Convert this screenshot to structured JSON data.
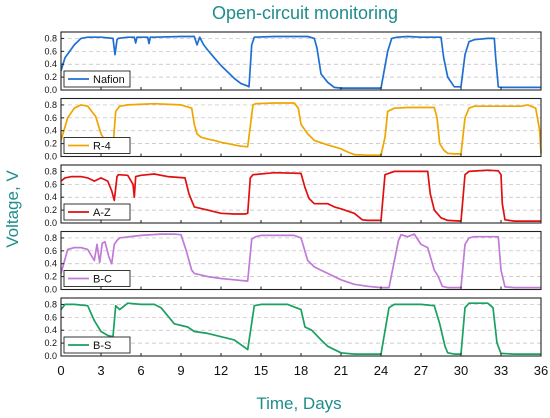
{
  "chart_data": {
    "type": "line",
    "title": "Open-circuit monitoring",
    "xlabel": "Time, Days",
    "ylabel": "Voltage, V",
    "xlim": [
      0,
      36
    ],
    "ylim": [
      0,
      0.9
    ],
    "x_ticks": [
      "0",
      "3",
      "6",
      "9",
      "12",
      "15",
      "18",
      "21",
      "24",
      "27",
      "30",
      "33",
      "36"
    ],
    "y_ticks": [
      "0.0",
      "0.2",
      "0.4",
      "0.6",
      "0.8"
    ],
    "grid": "horizontal dashed",
    "legend_position": "bottom-left",
    "panels": [
      {
        "name": "Nafion",
        "color": "#1f6fd1",
        "x": [
          0,
          0.3,
          1,
          1.5,
          2,
          3,
          3.9,
          4.05,
          4.2,
          4.3,
          5,
          5.5,
          5.6,
          5.7,
          6,
          6.5,
          6.6,
          6.7,
          7,
          9,
          10,
          10.2,
          10.4,
          10.7,
          11,
          11.5,
          12,
          12.5,
          13,
          13.5,
          14,
          14.1,
          14.3,
          14.5,
          16,
          17,
          18.5,
          19,
          19.2,
          19.5,
          20,
          20.5,
          21,
          22,
          24,
          24.5,
          24.8,
          25.2,
          26,
          27,
          28.5,
          28.7,
          29,
          29.5,
          30,
          30.3,
          30.6,
          31,
          32,
          32.5,
          32.6,
          32.8,
          33,
          34,
          36
        ],
        "values": [
          0.3,
          0.5,
          0.7,
          0.8,
          0.82,
          0.82,
          0.8,
          0.55,
          0.78,
          0.8,
          0.82,
          0.82,
          0.73,
          0.82,
          0.82,
          0.82,
          0.72,
          0.82,
          0.82,
          0.83,
          0.83,
          0.7,
          0.82,
          0.7,
          0.62,
          0.5,
          0.38,
          0.28,
          0.18,
          0.1,
          0.06,
          0.05,
          0.7,
          0.82,
          0.83,
          0.83,
          0.83,
          0.8,
          0.65,
          0.25,
          0.12,
          0.04,
          0.03,
          0.03,
          0.03,
          0.6,
          0.8,
          0.82,
          0.83,
          0.82,
          0.82,
          0.5,
          0.2,
          0.05,
          0.05,
          0.55,
          0.75,
          0.78,
          0.8,
          0.8,
          0.5,
          0.05,
          0.04,
          0.04,
          0.04
        ]
      },
      {
        "name": "R-4",
        "color": "#f0a500",
        "x": [
          0,
          0.5,
          1,
          1.5,
          2,
          2.3,
          2.6,
          3,
          3.3,
          3.5,
          3.9,
          4.1,
          4.4,
          5,
          7,
          9,
          9.8,
          10,
          10.2,
          10.5,
          11,
          11.5,
          12,
          12.5,
          13,
          13.5,
          14,
          14.4,
          14.6,
          16,
          17.5,
          17.8,
          18,
          18.5,
          19,
          20,
          21,
          21.5,
          22,
          23,
          24,
          24.3,
          24.5,
          25,
          26,
          27,
          28,
          28.2,
          28.4,
          28.7,
          29,
          29.5,
          30,
          30.3,
          30.6,
          31,
          33,
          34.5,
          35,
          35.6,
          35.9,
          36
        ],
        "values": [
          0.25,
          0.6,
          0.75,
          0.8,
          0.78,
          0.7,
          0.62,
          0.35,
          0.25,
          0.18,
          0.15,
          0.7,
          0.78,
          0.8,
          0.82,
          0.8,
          0.75,
          0.5,
          0.35,
          0.3,
          0.27,
          0.25,
          0.22,
          0.2,
          0.18,
          0.16,
          0.15,
          0.8,
          0.82,
          0.83,
          0.83,
          0.75,
          0.5,
          0.35,
          0.25,
          0.18,
          0.12,
          0.07,
          0.03,
          0.02,
          0.02,
          0.3,
          0.7,
          0.75,
          0.76,
          0.76,
          0.76,
          0.6,
          0.2,
          0.1,
          0.05,
          0.04,
          0.04,
          0.6,
          0.75,
          0.78,
          0.78,
          0.78,
          0.8,
          0.75,
          0.4,
          0.05
        ]
      },
      {
        "name": "A-Z",
        "color": "#e01010",
        "x": [
          0,
          0.3,
          0.8,
          1.5,
          2,
          2.5,
          3,
          3.5,
          3.8,
          4,
          4.2,
          4.3,
          5,
          5.4,
          5.5,
          5.6,
          6,
          7,
          8,
          9.3,
          9.6,
          10,
          11,
          12,
          13,
          13.8,
          14,
          14.2,
          14.4,
          16,
          18,
          18.3,
          18.6,
          19,
          20,
          20.5,
          21,
          22,
          22.6,
          23,
          24,
          24.3,
          25,
          27.5,
          27.7,
          28,
          28.5,
          29,
          30,
          30.3,
          30.6,
          32,
          32.8,
          33,
          33.1,
          33.3,
          34,
          36
        ],
        "values": [
          0.65,
          0.7,
          0.72,
          0.72,
          0.7,
          0.65,
          0.7,
          0.65,
          0.5,
          0.35,
          0.72,
          0.75,
          0.74,
          0.6,
          0.4,
          0.72,
          0.74,
          0.76,
          0.72,
          0.7,
          0.45,
          0.25,
          0.2,
          0.15,
          0.14,
          0.14,
          0.15,
          0.7,
          0.75,
          0.78,
          0.77,
          0.55,
          0.38,
          0.3,
          0.3,
          0.25,
          0.22,
          0.15,
          0.05,
          0.04,
          0.04,
          0.75,
          0.8,
          0.8,
          0.45,
          0.2,
          0.08,
          0.04,
          0.03,
          0.75,
          0.8,
          0.82,
          0.81,
          0.75,
          0.3,
          0.05,
          0.03,
          0.03
        ]
      },
      {
        "name": "B-C",
        "color": "#c07ad8",
        "x": [
          0,
          0.5,
          1,
          1.5,
          2,
          2.5,
          2.7,
          2.9,
          3.1,
          3.3,
          3.6,
          3.8,
          4,
          4.2,
          4.4,
          6,
          7.5,
          8.5,
          9,
          9.4,
          9.8,
          10,
          11,
          12,
          13,
          14,
          14.3,
          14.6,
          15,
          17.5,
          18,
          18.5,
          19,
          19.5,
          20,
          21,
          22,
          23,
          24,
          24.6,
          25.3,
          25.5,
          26,
          26.5,
          27,
          27.5,
          28,
          28.3,
          28.6,
          29,
          29.5,
          30,
          30.3,
          30.6,
          31,
          32.8,
          33,
          33.3,
          34,
          36
        ],
        "values": [
          0.25,
          0.62,
          0.65,
          0.65,
          0.62,
          0.45,
          0.7,
          0.42,
          0.72,
          0.74,
          0.5,
          0.4,
          0.7,
          0.76,
          0.8,
          0.84,
          0.86,
          0.86,
          0.85,
          0.6,
          0.3,
          0.25,
          0.2,
          0.17,
          0.15,
          0.13,
          0.78,
          0.82,
          0.84,
          0.84,
          0.8,
          0.45,
          0.35,
          0.3,
          0.25,
          0.15,
          0.08,
          0.05,
          0.03,
          0.03,
          0.75,
          0.85,
          0.82,
          0.86,
          0.7,
          0.65,
          0.3,
          0.2,
          0.05,
          0.03,
          0.03,
          0.03,
          0.7,
          0.8,
          0.82,
          0.82,
          0.3,
          0.04,
          0.03,
          0.03
        ]
      },
      {
        "name": "B-S",
        "color": "#1aa060",
        "x": [
          0,
          0.3,
          1,
          2,
          2.5,
          3,
          3.5,
          3.9,
          4.1,
          4.4,
          5,
          6,
          7,
          7.5,
          8.5,
          9.5,
          10,
          11,
          12,
          13,
          14,
          14.5,
          15,
          16,
          17,
          18,
          18.3,
          18.8,
          19.5,
          20,
          21,
          22,
          23,
          24,
          24.6,
          25,
          27,
          28,
          28.4,
          28.8,
          29,
          29.5,
          30,
          30.3,
          30.6,
          32,
          32.4,
          32.7,
          33,
          34,
          36
        ],
        "values": [
          0.72,
          0.8,
          0.8,
          0.78,
          0.55,
          0.38,
          0.32,
          0.3,
          0.78,
          0.72,
          0.82,
          0.8,
          0.8,
          0.75,
          0.5,
          0.45,
          0.38,
          0.35,
          0.3,
          0.25,
          0.1,
          0.78,
          0.8,
          0.8,
          0.8,
          0.72,
          0.45,
          0.4,
          0.25,
          0.15,
          0.05,
          0.03,
          0.03,
          0.03,
          0.75,
          0.8,
          0.8,
          0.78,
          0.5,
          0.15,
          0.05,
          0.03,
          0.03,
          0.75,
          0.82,
          0.82,
          0.75,
          0.2,
          0.04,
          0.03,
          0.03
        ]
      }
    ]
  }
}
